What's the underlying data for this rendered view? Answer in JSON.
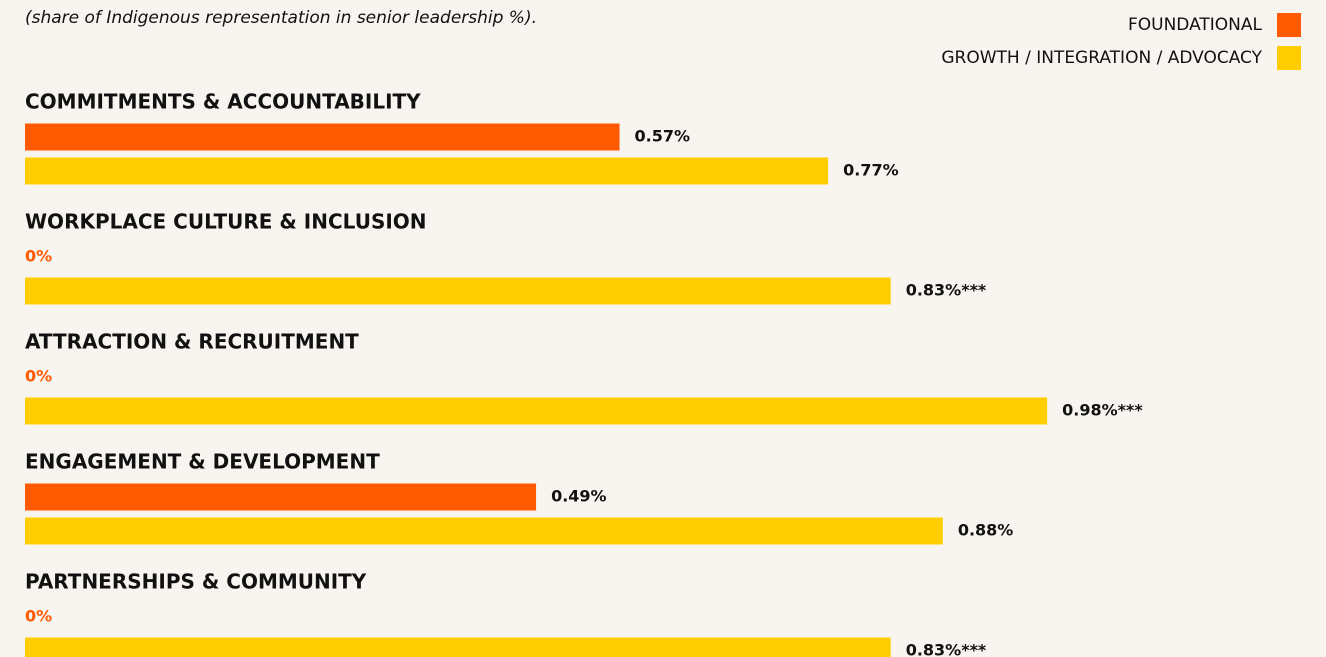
{
  "chart_data": {
    "type": "bar",
    "orientation": "horizontal",
    "subtitle": "(share of Indigenous representation in senior leadership %).",
    "categories": [
      "COMMITMENTS & ACCOUNTABILITY",
      "WORKPLACE CULTURE &  INCLUSION",
      "ATTRACTION & RECRUITMENT",
      "ENGAGEMENT & DEVELOPMENT",
      "PARTNERSHIPS & COMMUNITY"
    ],
    "series": [
      {
        "name": "FOUNDATIONAL",
        "color": "#ff5a00",
        "values": [
          0.57,
          0,
          0,
          0.49,
          0
        ],
        "value_labels": [
          "0.57%",
          "0%",
          "0%",
          "0.49%",
          "0%"
        ]
      },
      {
        "name": "GROWTH / INTEGRATION / ADVOCACY",
        "color": "#ffcd00",
        "values": [
          0.77,
          0.83,
          0.98,
          0.88,
          0.83
        ],
        "value_labels": [
          "0.77%",
          "0.83%***",
          "0.98%***",
          "0.88%",
          "0.83%***"
        ]
      }
    ],
    "xlim": [
      0,
      1
    ],
    "legend": "top-right"
  }
}
